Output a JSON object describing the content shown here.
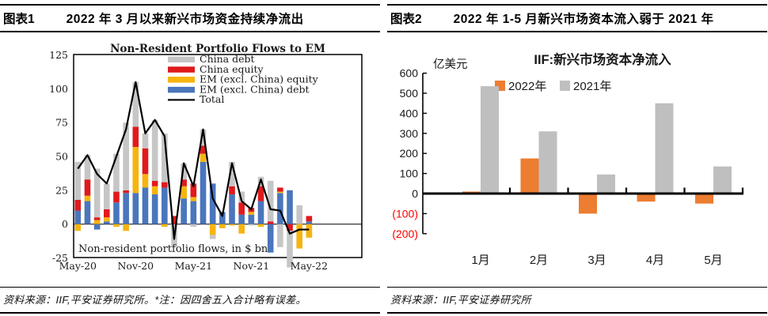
{
  "panels": [
    {
      "header": {
        "tag": "图表1",
        "title": "2022 年 3 月以来新兴市场资金持续净流出"
      },
      "footer": "资料来源：IIF,平安证券研究所。*注：因四舍五入合计略有误差。"
    },
    {
      "header": {
        "tag": "图表2",
        "title": "2022 年 1-5 月新兴市场资本流入弱于 2021 年"
      },
      "footer": "资料来源：IIF,平安证券研究所"
    }
  ],
  "chart_data": [
    {
      "type": "bar",
      "subtype": "stacked-bars-with-total-line",
      "title": "Non-Resident Portfolio Flows to EM",
      "inner_caption": "Non-resident portfolio flows, in $ bn",
      "x": [
        "May-20",
        "Jun-20",
        "Jul-20",
        "Aug-20",
        "Sep-20",
        "Oct-20",
        "Nov-20",
        "Dec-20",
        "Jan-21",
        "Feb-21",
        "Mar-21",
        "Apr-21",
        "May-21",
        "Jun-21",
        "Jul-21",
        "Aug-21",
        "Sep-21",
        "Oct-21",
        "Nov-21",
        "Dec-21",
        "Jan-22",
        "Feb-22",
        "Mar-22",
        "Apr-22",
        "May-22"
      ],
      "x_tick_labels": [
        "May-20",
        "Nov-20",
        "May-21",
        "Nov-21",
        "May-22"
      ],
      "x_tick_indices": [
        0,
        6,
        12,
        18,
        24
      ],
      "ylim": [
        -25,
        125
      ],
      "yticks": [
        125,
        100,
        75,
        50,
        25,
        0,
        -25
      ],
      "grid": "zero-line-only",
      "legend_position": "top-right-inside",
      "series": [
        {
          "name": "China debt",
          "color": "#c6c6c6",
          "values": [
            28,
            18,
            36,
            19,
            28,
            50,
            33,
            11,
            45,
            36,
            -17,
            12,
            -2,
            12,
            -3,
            0,
            18,
            8,
            -1,
            7,
            30,
            -17,
            -27,
            14,
            0
          ]
        },
        {
          "name": "China equity",
          "color": "#e01a1d",
          "values": [
            8,
            12,
            2,
            6,
            8,
            2,
            15,
            19,
            4,
            4,
            6,
            5,
            10,
            6,
            0,
            0,
            6,
            9,
            3,
            11,
            2,
            3,
            -5,
            0,
            4
          ]
        },
        {
          "name": "EM (excl. China) equity",
          "color": "#f6b40e",
          "values": [
            -5,
            4,
            3,
            3,
            -2,
            -5,
            34,
            10,
            6,
            -2,
            0,
            9,
            3,
            6,
            -8,
            -3,
            -1,
            -7,
            2,
            -2,
            0,
            1,
            0,
            -18,
            -10
          ]
        },
        {
          "name": "EM (excl. China) debt",
          "color": "#4a76bc",
          "values": [
            10,
            17,
            -4,
            2,
            16,
            23,
            23,
            27,
            22,
            27,
            0,
            19,
            17,
            46,
            30,
            9,
            22,
            7,
            7,
            17,
            -21,
            23,
            25,
            0,
            2
          ]
        }
      ],
      "line_series": {
        "name": "Total",
        "color": "#000000",
        "values": [
          41,
          51,
          37,
          30,
          50,
          70,
          105,
          67,
          77,
          65,
          -11,
          45,
          28,
          70,
          19,
          6,
          45,
          17,
          11,
          33,
          11,
          10,
          -7,
          -4,
          -4
        ]
      }
    },
    {
      "type": "bar",
      "subtype": "grouped-bars",
      "title": "IIF:新兴市场资本净流入",
      "unit_label": "亿美元",
      "categories": [
        "1月",
        "2月",
        "3月",
        "4月",
        "5月"
      ],
      "ylim": [
        -200,
        600
      ],
      "yticks": [
        600,
        500,
        400,
        300,
        200,
        100,
        0,
        -100,
        -200
      ],
      "negative_tick_style": "parentheses-red",
      "negative_tick_color": "#ff0000",
      "legend_position": "top-center",
      "series": [
        {
          "name": "2022年",
          "color": "#ed7d31",
          "values": [
            10,
            175,
            -100,
            -40,
            -50
          ]
        },
        {
          "name": "2021年",
          "color": "#bfbfbf",
          "values": [
            535,
            310,
            95,
            450,
            135
          ]
        }
      ]
    }
  ]
}
